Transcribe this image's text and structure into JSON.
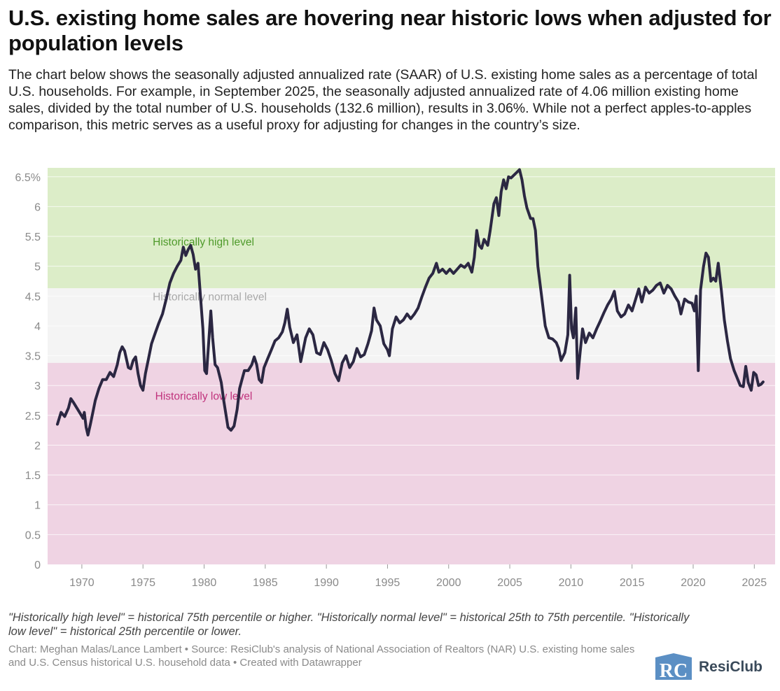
{
  "header": {
    "title": "U.S. existing home sales are hovering near historic lows when adjusted for population levels",
    "subtitle": "The chart below shows the seasonally adjusted annualized rate (SAAR) of U.S. existing home sales as a percentage of total U.S. households. For example, in September 2025, the seasonally adjusted annualized rate of 4.06 million existing home sales, divided by the total number of U.S. households (132.6 million), results in 3.06%. While not a perfect apples-to-apples comparison, this metric serves as a useful proxy for adjusting for changes in the country’s size."
  },
  "footer": {
    "notes": "\"Historically high level\" = historical 75th percentile or higher. \"Historically normal level\" = historical 25th to 75th percentile. \"Historically low level\" = historical 25th percentile or lower.",
    "credits": "Chart: Meghan Malas/Lance Lambert • Source: ResiClub's analysis of National Association of Realtors (NAR) U.S. existing home sales and U.S. Census historical U.S. household data • Created with Datawrapper",
    "logo_text": "ResiClub",
    "logo_mark": "RC"
  },
  "chart_data": {
    "type": "line",
    "title": "",
    "xlabel": "",
    "ylabel": "",
    "xlim": [
      1967.2,
      2026.7
    ],
    "ylim": [
      0,
      6.65
    ],
    "grid": true,
    "x_ticks": [
      1970,
      1975,
      1980,
      1985,
      1990,
      1995,
      2000,
      2005,
      2010,
      2015,
      2020,
      2025
    ],
    "x_tick_labels": [
      "1970",
      "1975",
      "1980",
      "1985",
      "1990",
      "1995",
      "2000",
      "2005",
      "2010",
      "2015",
      "2020",
      "2025"
    ],
    "y_ticks": [
      0,
      0.5,
      1,
      1.5,
      2,
      2.5,
      3,
      3.5,
      4,
      4.5,
      5,
      5.5,
      6,
      6.5
    ],
    "y_tick_labels": [
      "0",
      "0.5",
      "1",
      "1.5",
      "2",
      "2.5",
      "3",
      "3.5",
      "4",
      "4.5",
      "5",
      "5.5",
      "6",
      "6.5%"
    ],
    "bands": [
      {
        "label": "Historically high level",
        "from": 4.63,
        "to": 6.65,
        "color": "#dcedc8",
        "label_color": "#4e9a2a",
        "label_x": 1975.8,
        "label_y": 5.35
      },
      {
        "label": "Historically normal level",
        "from": 3.38,
        "to": 4.63,
        "color": "#f4f4f4",
        "label_color": "#a8a8a8",
        "label_x": 1975.8,
        "label_y": 4.43
      },
      {
        "label": "Historically low level",
        "from": 0,
        "to": 3.38,
        "color": "#efd3e3",
        "label_color": "#c0327c",
        "label_x": 1976.0,
        "label_y": 2.76
      }
    ],
    "series": [
      {
        "color": "#2b2742",
        "points": [
          [
            1968.0,
            2.35
          ],
          [
            1968.3,
            2.55
          ],
          [
            1968.6,
            2.48
          ],
          [
            1968.9,
            2.62
          ],
          [
            1969.1,
            2.78
          ],
          [
            1969.3,
            2.72
          ],
          [
            1969.6,
            2.62
          ],
          [
            1969.9,
            2.52
          ],
          [
            1970.1,
            2.45
          ],
          [
            1970.2,
            2.55
          ],
          [
            1970.35,
            2.3
          ],
          [
            1970.5,
            2.17
          ],
          [
            1970.7,
            2.35
          ],
          [
            1970.9,
            2.55
          ],
          [
            1971.1,
            2.75
          ],
          [
            1971.4,
            2.95
          ],
          [
            1971.7,
            3.1
          ],
          [
            1972.0,
            3.1
          ],
          [
            1972.3,
            3.22
          ],
          [
            1972.6,
            3.15
          ],
          [
            1972.9,
            3.35
          ],
          [
            1973.1,
            3.55
          ],
          [
            1973.3,
            3.65
          ],
          [
            1973.5,
            3.58
          ],
          [
            1973.8,
            3.3
          ],
          [
            1974.0,
            3.28
          ],
          [
            1974.2,
            3.42
          ],
          [
            1974.4,
            3.48
          ],
          [
            1974.6,
            3.2
          ],
          [
            1974.8,
            3.0
          ],
          [
            1975.0,
            2.92
          ],
          [
            1975.2,
            3.2
          ],
          [
            1975.45,
            3.45
          ],
          [
            1975.7,
            3.7
          ],
          [
            1976.0,
            3.88
          ],
          [
            1976.3,
            4.05
          ],
          [
            1976.6,
            4.2
          ],
          [
            1976.9,
            4.45
          ],
          [
            1977.2,
            4.72
          ],
          [
            1977.5,
            4.88
          ],
          [
            1977.8,
            5.0
          ],
          [
            1978.1,
            5.1
          ],
          [
            1978.3,
            5.32
          ],
          [
            1978.5,
            5.18
          ],
          [
            1978.7,
            5.28
          ],
          [
            1978.9,
            5.35
          ],
          [
            1979.1,
            5.2
          ],
          [
            1979.3,
            4.95
          ],
          [
            1979.5,
            5.05
          ],
          [
            1979.7,
            4.5
          ],
          [
            1979.9,
            3.95
          ],
          [
            1980.05,
            3.25
          ],
          [
            1980.2,
            3.2
          ],
          [
            1980.4,
            3.8
          ],
          [
            1980.55,
            4.25
          ],
          [
            1980.7,
            3.8
          ],
          [
            1980.9,
            3.35
          ],
          [
            1981.1,
            3.3
          ],
          [
            1981.4,
            3.05
          ],
          [
            1981.6,
            2.75
          ],
          [
            1981.8,
            2.5
          ],
          [
            1981.95,
            2.3
          ],
          [
            1982.2,
            2.25
          ],
          [
            1982.45,
            2.32
          ],
          [
            1982.7,
            2.6
          ],
          [
            1982.9,
            2.95
          ],
          [
            1983.1,
            3.1
          ],
          [
            1983.3,
            3.25
          ],
          [
            1983.6,
            3.25
          ],
          [
            1983.9,
            3.35
          ],
          [
            1984.1,
            3.48
          ],
          [
            1984.3,
            3.35
          ],
          [
            1984.5,
            3.1
          ],
          [
            1984.7,
            3.05
          ],
          [
            1984.9,
            3.3
          ],
          [
            1985.2,
            3.45
          ],
          [
            1985.5,
            3.6
          ],
          [
            1985.8,
            3.75
          ],
          [
            1986.1,
            3.8
          ],
          [
            1986.4,
            3.9
          ],
          [
            1986.6,
            4.05
          ],
          [
            1986.8,
            4.28
          ],
          [
            1987.0,
            3.98
          ],
          [
            1987.3,
            3.72
          ],
          [
            1987.6,
            3.85
          ],
          [
            1987.9,
            3.4
          ],
          [
            1988.1,
            3.6
          ],
          [
            1988.3,
            3.8
          ],
          [
            1988.6,
            3.95
          ],
          [
            1988.9,
            3.85
          ],
          [
            1989.2,
            3.55
          ],
          [
            1989.5,
            3.52
          ],
          [
            1989.8,
            3.72
          ],
          [
            1990.1,
            3.6
          ],
          [
            1990.4,
            3.42
          ],
          [
            1990.7,
            3.2
          ],
          [
            1991.0,
            3.08
          ],
          [
            1991.3,
            3.38
          ],
          [
            1991.6,
            3.5
          ],
          [
            1991.9,
            3.3
          ],
          [
            1992.2,
            3.4
          ],
          [
            1992.5,
            3.62
          ],
          [
            1992.8,
            3.48
          ],
          [
            1993.1,
            3.52
          ],
          [
            1993.4,
            3.7
          ],
          [
            1993.7,
            3.92
          ],
          [
            1993.9,
            4.3
          ],
          [
            1994.1,
            4.1
          ],
          [
            1994.4,
            4.0
          ],
          [
            1994.7,
            3.7
          ],
          [
            1995.0,
            3.6
          ],
          [
            1995.15,
            3.5
          ],
          [
            1995.4,
            3.95
          ],
          [
            1995.7,
            4.15
          ],
          [
            1996.0,
            4.05
          ],
          [
            1996.3,
            4.1
          ],
          [
            1996.6,
            4.2
          ],
          [
            1996.9,
            4.12
          ],
          [
            1997.2,
            4.2
          ],
          [
            1997.5,
            4.3
          ],
          [
            1997.8,
            4.48
          ],
          [
            1998.1,
            4.65
          ],
          [
            1998.4,
            4.8
          ],
          [
            1998.7,
            4.88
          ],
          [
            1999.0,
            5.05
          ],
          [
            1999.2,
            4.9
          ],
          [
            1999.5,
            4.95
          ],
          [
            1999.8,
            4.88
          ],
          [
            2000.1,
            4.95
          ],
          [
            2000.4,
            4.88
          ],
          [
            2000.7,
            4.95
          ],
          [
            2001.0,
            5.02
          ],
          [
            2001.3,
            4.98
          ],
          [
            2001.6,
            5.05
          ],
          [
            2001.9,
            4.9
          ],
          [
            2002.1,
            5.15
          ],
          [
            2002.3,
            5.6
          ],
          [
            2002.5,
            5.35
          ],
          [
            2002.7,
            5.3
          ],
          [
            2002.9,
            5.45
          ],
          [
            2003.2,
            5.35
          ],
          [
            2003.4,
            5.6
          ],
          [
            2003.7,
            6.05
          ],
          [
            2003.9,
            6.15
          ],
          [
            2004.1,
            5.85
          ],
          [
            2004.3,
            6.25
          ],
          [
            2004.5,
            6.45
          ],
          [
            2004.7,
            6.3
          ],
          [
            2004.9,
            6.5
          ],
          [
            2005.1,
            6.48
          ],
          [
            2005.3,
            6.52
          ],
          [
            2005.6,
            6.58
          ],
          [
            2005.8,
            6.62
          ],
          [
            2006.0,
            6.45
          ],
          [
            2006.2,
            6.18
          ],
          [
            2006.4,
            5.98
          ],
          [
            2006.7,
            5.8
          ],
          [
            2006.9,
            5.8
          ],
          [
            2007.1,
            5.6
          ],
          [
            2007.3,
            5.0
          ],
          [
            2007.6,
            4.5
          ],
          [
            2007.9,
            4.0
          ],
          [
            2008.2,
            3.8
          ],
          [
            2008.5,
            3.78
          ],
          [
            2008.8,
            3.72
          ],
          [
            2009.0,
            3.62
          ],
          [
            2009.2,
            3.42
          ],
          [
            2009.5,
            3.55
          ],
          [
            2009.75,
            3.85
          ],
          [
            2009.9,
            4.85
          ],
          [
            2010.05,
            3.95
          ],
          [
            2010.2,
            3.8
          ],
          [
            2010.4,
            4.3
          ],
          [
            2010.55,
            3.12
          ],
          [
            2010.75,
            3.55
          ],
          [
            2010.95,
            3.95
          ],
          [
            2011.2,
            3.72
          ],
          [
            2011.5,
            3.88
          ],
          [
            2011.8,
            3.8
          ],
          [
            2012.1,
            3.95
          ],
          [
            2012.4,
            4.08
          ],
          [
            2012.7,
            4.22
          ],
          [
            2013.0,
            4.35
          ],
          [
            2013.3,
            4.45
          ],
          [
            2013.55,
            4.58
          ],
          [
            2013.8,
            4.25
          ],
          [
            2014.1,
            4.15
          ],
          [
            2014.4,
            4.2
          ],
          [
            2014.7,
            4.35
          ],
          [
            2015.0,
            4.25
          ],
          [
            2015.3,
            4.45
          ],
          [
            2015.55,
            4.62
          ],
          [
            2015.8,
            4.4
          ],
          [
            2016.1,
            4.65
          ],
          [
            2016.4,
            4.55
          ],
          [
            2016.7,
            4.6
          ],
          [
            2017.0,
            4.68
          ],
          [
            2017.3,
            4.72
          ],
          [
            2017.6,
            4.55
          ],
          [
            2017.9,
            4.68
          ],
          [
            2018.2,
            4.62
          ],
          [
            2018.5,
            4.5
          ],
          [
            2018.8,
            4.4
          ],
          [
            2019.0,
            4.2
          ],
          [
            2019.3,
            4.45
          ],
          [
            2019.6,
            4.4
          ],
          [
            2019.9,
            4.38
          ],
          [
            2020.1,
            4.25
          ],
          [
            2020.25,
            4.5
          ],
          [
            2020.42,
            3.25
          ],
          [
            2020.6,
            4.6
          ],
          [
            2020.85,
            5.0
          ],
          [
            2021.05,
            5.22
          ],
          [
            2021.25,
            5.15
          ],
          [
            2021.45,
            4.75
          ],
          [
            2021.65,
            4.8
          ],
          [
            2021.85,
            4.75
          ],
          [
            2022.05,
            5.05
          ],
          [
            2022.3,
            4.6
          ],
          [
            2022.55,
            4.1
          ],
          [
            2022.8,
            3.75
          ],
          [
            2023.05,
            3.45
          ],
          [
            2023.35,
            3.25
          ],
          [
            2023.55,
            3.15
          ],
          [
            2023.85,
            3.0
          ],
          [
            2024.1,
            2.98
          ],
          [
            2024.3,
            3.32
          ],
          [
            2024.5,
            3.05
          ],
          [
            2024.75,
            2.92
          ],
          [
            2024.95,
            3.22
          ],
          [
            2025.15,
            3.18
          ],
          [
            2025.35,
            3.0
          ],
          [
            2025.55,
            3.02
          ],
          [
            2025.72,
            3.06
          ]
        ]
      }
    ]
  }
}
